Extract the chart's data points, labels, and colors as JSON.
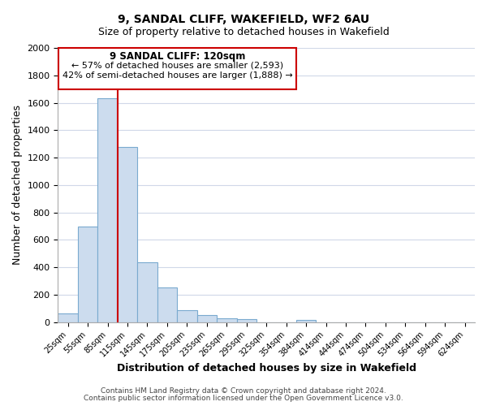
{
  "title": "9, SANDAL CLIFF, WAKEFIELD, WF2 6AU",
  "subtitle": "Size of property relative to detached houses in Wakefield",
  "xlabel": "Distribution of detached houses by size in Wakefield",
  "ylabel": "Number of detached properties",
  "bar_labels": [
    "25sqm",
    "55sqm",
    "85sqm",
    "115sqm",
    "145sqm",
    "175sqm",
    "205sqm",
    "235sqm",
    "265sqm",
    "295sqm",
    "325sqm",
    "354sqm",
    "384sqm",
    "414sqm",
    "444sqm",
    "474sqm",
    "504sqm",
    "534sqm",
    "564sqm",
    "594sqm",
    "624sqm"
  ],
  "bar_values": [
    65,
    695,
    1635,
    1280,
    435,
    252,
    90,
    50,
    30,
    20,
    0,
    0,
    15,
    0,
    0,
    0,
    0,
    0,
    0,
    0,
    0
  ],
  "bar_color": "#ccdcee",
  "bar_edge_color": "#7aaacf",
  "vline_x": 2.5,
  "vline_color": "#cc0000",
  "annotation_title": "9 SANDAL CLIFF: 120sqm",
  "annotation_line1": "← 57% of detached houses are smaller (2,593)",
  "annotation_line2": "42% of semi-detached houses are larger (1,888) →",
  "annotation_box_color": "#ffffff",
  "annotation_box_edge": "#cc0000",
  "ylim": [
    0,
    2000
  ],
  "yticks": [
    0,
    200,
    400,
    600,
    800,
    1000,
    1200,
    1400,
    1600,
    1800,
    2000
  ],
  "footer1": "Contains HM Land Registry data © Crown copyright and database right 2024.",
  "footer2": "Contains public sector information licensed under the Open Government Licence v3.0.",
  "background_color": "#ffffff",
  "grid_color": "#d0d8e8"
}
